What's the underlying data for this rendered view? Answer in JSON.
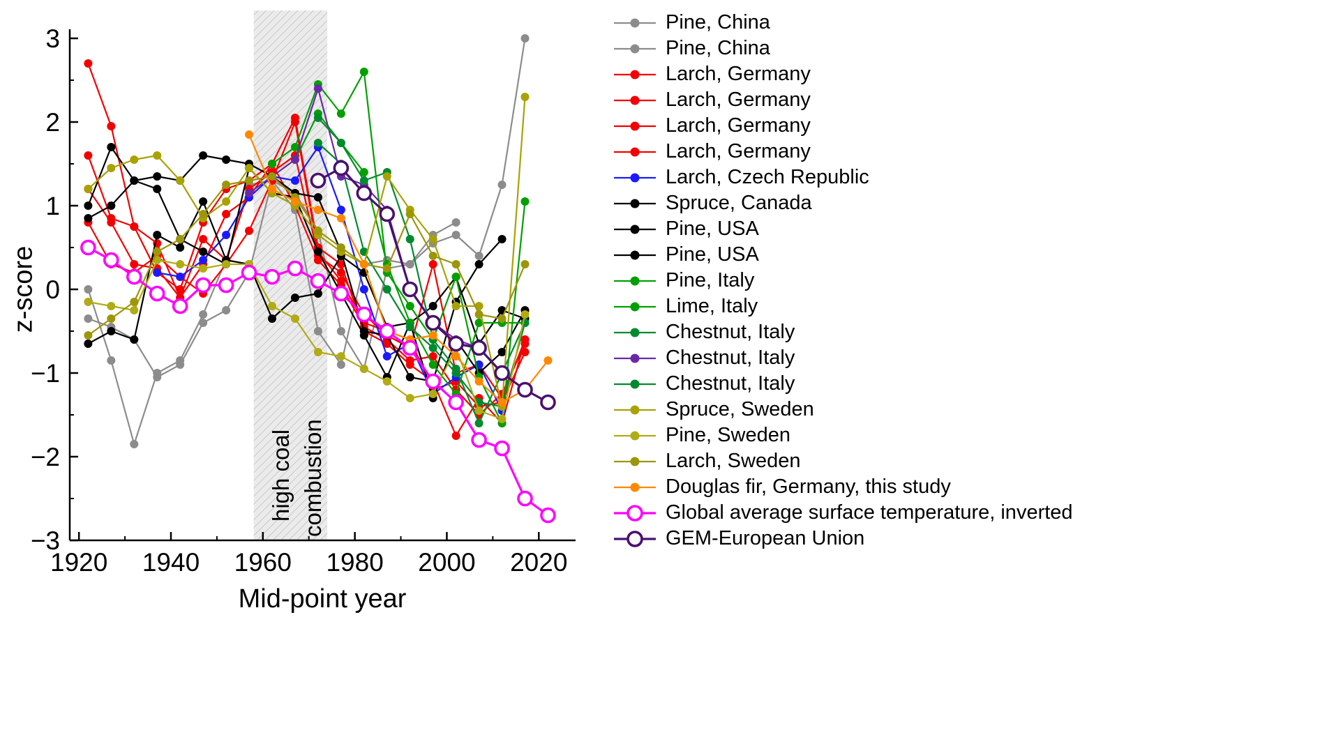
{
  "chart_data": {
    "type": "line",
    "title": "",
    "xlabel": "Mid-point year",
    "ylabel": "z-score",
    "xlim": [
      1918,
      2028
    ],
    "ylim": [
      -3,
      3
    ],
    "xticks": [
      1920,
      1940,
      1960,
      1980,
      2000,
      2020
    ],
    "xminor": [
      1930,
      1950,
      1970,
      1990,
      2010
    ],
    "yticks": [
      -3,
      -2,
      -1,
      0,
      1,
      2,
      3
    ],
    "yminor": [
      -2.5,
      -1.5,
      -0.5,
      0.5,
      1.5,
      2.5
    ],
    "grid": false,
    "legend_position": "right",
    "band": {
      "x0": 1958,
      "x1": 1974,
      "label_line1": "high coal",
      "label_line2": "combustion",
      "fill": "#ebebeb",
      "hatch": "#c9c9c9"
    },
    "x": [
      1922,
      1927,
      1932,
      1937,
      1942,
      1947,
      1952,
      1957,
      1962,
      1967,
      1972,
      1977,
      1982,
      1987,
      1992,
      1997,
      2002,
      2007,
      2012,
      2017,
      2022
    ],
    "series": [
      {
        "name": "Pine, China",
        "color": "#8c8c8c",
        "marker": "filled",
        "lw": 2.2,
        "values": [
          0.0,
          -0.85,
          -1.85,
          -1.0,
          -0.85,
          -0.3,
          0.35,
          1.25,
          1.3,
          0.95,
          -0.5,
          -0.9,
          0.3,
          0.35,
          0.3,
          0.65,
          0.8,
          null,
          null,
          null,
          null
        ]
      },
      {
        "name": "Pine, China",
        "color": "#8c8c8c",
        "marker": "filled",
        "lw": 2.2,
        "values": [
          -0.35,
          -0.45,
          -0.6,
          -1.05,
          -0.9,
          -0.4,
          -0.25,
          0.2,
          1.3,
          1.15,
          0.7,
          -0.5,
          -0.95,
          0.25,
          0.3,
          0.55,
          0.65,
          0.4,
          1.25,
          3.0,
          null
        ]
      },
      {
        "name": "Larch, Germany",
        "color": "#f40000",
        "marker": "filled",
        "lw": 2.2,
        "values": [
          2.7,
          1.95,
          0.75,
          0.2,
          0.0,
          0.8,
          1.2,
          1.3,
          1.5,
          2.05,
          0.5,
          0.3,
          -0.5,
          -0.65,
          -0.9,
          -1.1,
          -1.75,
          -1.3,
          -1.6,
          -0.6,
          null
        ]
      },
      {
        "name": "Larch, Germany",
        "color": "#f40000",
        "marker": "filled",
        "lw": 2.2,
        "values": [
          1.6,
          0.85,
          0.75,
          0.55,
          -0.1,
          0.6,
          0.35,
          1.2,
          1.4,
          1.6,
          0.4,
          0.2,
          -0.3,
          -0.55,
          -0.7,
          0.3,
          -1.0,
          -0.9,
          -1.3,
          -0.6,
          null
        ]
      },
      {
        "name": "Larch, Germany",
        "color": "#f40000",
        "marker": "filled",
        "lw": 2.2,
        "values": [
          0.8,
          0.3,
          0.2,
          0.4,
          0.15,
          -0.05,
          0.3,
          0.7,
          1.3,
          2.0,
          0.45,
          0.1,
          -0.4,
          -0.5,
          -0.6,
          -1.2,
          -1.1,
          -1.4,
          -1.35,
          -0.75,
          null
        ]
      },
      {
        "name": "Larch, Germany",
        "color": "#f40000",
        "marker": "filled",
        "lw": 2.2,
        "values": [
          1.2,
          0.8,
          0.3,
          0.25,
          -0.1,
          0.3,
          0.9,
          1.1,
          1.5,
          1.0,
          0.35,
          0.05,
          -0.45,
          -0.6,
          -0.85,
          -0.8,
          -1.2,
          -1.5,
          -1.25,
          -0.65,
          null
        ]
      },
      {
        "name": "Larch, Czech Republic",
        "color": "#1a1aff",
        "marker": "filled",
        "lw": 2.2,
        "values": [
          null,
          null,
          null,
          0.2,
          0.15,
          0.35,
          0.65,
          1.1,
          1.35,
          1.3,
          1.7,
          0.95,
          0.0,
          -0.8,
          -0.65,
          -1.25,
          -1.05,
          -0.9,
          -1.45,
          null,
          null
        ]
      },
      {
        "name": "Spruce, Canada",
        "color": "#000000",
        "marker": "filled",
        "lw": 2.2,
        "values": [
          0.85,
          1.0,
          1.3,
          1.35,
          1.3,
          1.6,
          1.55,
          1.5,
          1.35,
          1.15,
          1.1,
          0.45,
          -0.5,
          -0.55,
          -1.05,
          -1.1,
          -0.15,
          0.3,
          0.6,
          null,
          null
        ]
      },
      {
        "name": "Pine, USA",
        "color": "#000000",
        "marker": "filled",
        "lw": 2.2,
        "values": [
          -0.65,
          -0.5,
          -0.6,
          0.65,
          0.5,
          1.05,
          0.35,
          0.3,
          -0.35,
          -0.1,
          -0.05,
          0.4,
          0.2,
          -0.45,
          -0.4,
          -0.2,
          0.15,
          -0.65,
          -0.25,
          -0.35,
          null
        ]
      },
      {
        "name": "Pine, USA",
        "color": "#000000",
        "marker": "filled",
        "lw": 2.2,
        "values": [
          1.0,
          1.7,
          1.3,
          1.2,
          0.6,
          0.45,
          0.3,
          1.45,
          1.15,
          1.1,
          0.45,
          -0.05,
          -0.55,
          -1.05,
          -0.4,
          -1.3,
          -0.6,
          -1.0,
          -0.75,
          -0.25,
          null
        ]
      },
      {
        "name": "Pine, Italy",
        "color": "#00a000",
        "marker": "filled",
        "lw": 2.2,
        "values": [
          null,
          null,
          null,
          null,
          null,
          null,
          null,
          null,
          1.5,
          1.7,
          2.45,
          2.1,
          2.6,
          0.2,
          -0.2,
          -0.6,
          0.15,
          -1.05,
          -1.6,
          1.05,
          null
        ]
      },
      {
        "name": "Lime, Italy",
        "color": "#00a000",
        "marker": "filled",
        "lw": 2.2,
        "values": [
          null,
          null,
          null,
          null,
          null,
          null,
          null,
          null,
          null,
          1.55,
          2.1,
          1.75,
          1.4,
          0.3,
          -0.4,
          -0.9,
          -1.25,
          -0.4,
          -0.4,
          -0.4,
          null
        ]
      },
      {
        "name": "Chestnut, Italy",
        "color": "#008a2e",
        "marker": "filled",
        "lw": 2.2,
        "values": [
          null,
          null,
          null,
          null,
          null,
          null,
          null,
          null,
          null,
          null,
          1.75,
          1.5,
          0.45,
          0.0,
          -0.45,
          -0.7,
          -1.0,
          -1.35,
          -1.4,
          -0.4,
          null
        ]
      },
      {
        "name": "Chestnut, Italy",
        "color": "#6a28a8",
        "marker": "filled",
        "lw": 2.2,
        "values": [
          null,
          null,
          null,
          null,
          null,
          null,
          null,
          1.15,
          1.35,
          1.55,
          2.4,
          1.35,
          1.25,
          0.95,
          0.0,
          -0.4,
          -0.6,
          -0.7,
          -1.0,
          -1.2,
          null
        ]
      },
      {
        "name": "Chestnut, Italy",
        "color": "#008a2e",
        "marker": "filled",
        "lw": 2.2,
        "values": [
          null,
          null,
          null,
          null,
          null,
          null,
          null,
          null,
          null,
          null,
          2.05,
          1.75,
          1.3,
          1.4,
          0.6,
          -0.6,
          -0.95,
          -1.6,
          -1.0,
          -0.4,
          null
        ]
      },
      {
        "name": "Spruce, Sweden",
        "color": "#a8a203",
        "marker": "filled",
        "lw": 2.2,
        "values": [
          1.2,
          1.45,
          1.55,
          1.6,
          1.3,
          0.85,
          1.05,
          1.45,
          1.15,
          1.0,
          0.65,
          0.45,
          0.3,
          1.35,
          0.95,
          0.6,
          -0.2,
          -0.2,
          -1.4,
          2.3,
          null
        ]
      },
      {
        "name": "Pine, Sweden",
        "color": "#b1ab14",
        "marker": "filled",
        "lw": 2.2,
        "values": [
          -0.15,
          -0.2,
          -0.25,
          0.35,
          0.3,
          0.25,
          0.3,
          0.3,
          -0.2,
          -0.35,
          -0.75,
          -0.8,
          -0.95,
          -1.1,
          -1.3,
          -1.25,
          -0.7,
          -1.45,
          -1.55,
          -0.3,
          null
        ]
      },
      {
        "name": "Larch, Sweden",
        "color": "#9c960a",
        "marker": "filled",
        "lw": 2.2,
        "values": [
          -0.55,
          -0.35,
          -0.15,
          0.45,
          0.6,
          0.9,
          1.25,
          1.3,
          1.35,
          1.1,
          0.7,
          0.5,
          0.3,
          0.25,
          0.9,
          0.4,
          0.3,
          -0.3,
          -0.35,
          0.3,
          null
        ]
      },
      {
        "name": "Douglas fir, Germany, this study",
        "color": "#ff8800",
        "marker": "filled",
        "lw": 2.2,
        "values": [
          null,
          null,
          null,
          null,
          null,
          null,
          null,
          1.85,
          1.2,
          1.05,
          0.95,
          0.85,
          0.3,
          -0.5,
          -0.6,
          -0.55,
          -0.8,
          -1.1,
          -1.35,
          -1.2,
          -0.85
        ]
      },
      {
        "name": "Global average surface temperature, inverted",
        "color": "#ff00ff",
        "marker": "open",
        "lw": 3.2,
        "values": [
          0.5,
          0.35,
          0.15,
          -0.05,
          -0.2,
          0.05,
          0.05,
          0.2,
          0.15,
          0.25,
          0.1,
          -0.05,
          -0.3,
          -0.5,
          -0.7,
          -1.1,
          -1.35,
          -1.8,
          -1.9,
          -2.5,
          -2.7
        ]
      },
      {
        "name": "GEM-European Union",
        "color": "#4a1070",
        "marker": "open",
        "lw": 3.2,
        "values": [
          null,
          null,
          null,
          null,
          null,
          null,
          null,
          null,
          null,
          null,
          1.3,
          1.45,
          1.15,
          0.9,
          0.0,
          -0.4,
          -0.65,
          -0.7,
          -1.0,
          -1.2,
          -1.35
        ]
      }
    ]
  }
}
